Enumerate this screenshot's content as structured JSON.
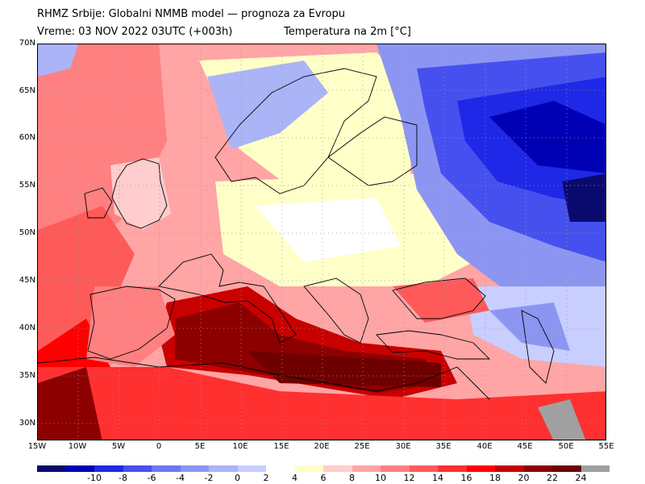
{
  "header": {
    "line1": "RHMZ Srbije: Globalni NMMB model — prognoza za Evropu",
    "line2": "Vreme: 03 NOV 2022 03UTC (+003h)",
    "line2b": "Temperatura na 2m [°C]"
  },
  "axes": {
    "lat_labels": [
      "70N",
      "65N",
      "60N",
      "55N",
      "50N",
      "45N",
      "40N",
      "35N",
      "30N"
    ],
    "lon_labels": [
      "15W",
      "10W",
      "5W",
      "0",
      "5E",
      "10E",
      "15E",
      "20E",
      "25E",
      "30E",
      "35E",
      "40E",
      "45E",
      "50E",
      "55E"
    ]
  },
  "legend": {
    "labels": [
      "-10",
      "-8",
      "-6",
      "-4",
      "-2",
      "0",
      "2",
      "4",
      "6",
      "8",
      "10",
      "12",
      "14",
      "16",
      "18",
      "20",
      "22",
      "24"
    ],
    "colors": [
      "#0a0a6e",
      "#0000b4",
      "#1e28e6",
      "#4650ee",
      "#6e78f0",
      "#8c96f2",
      "#aab4f6",
      "#c8ceff",
      "#ffffff",
      "#ffffc8",
      "#ffcdcd",
      "#ffa5a5",
      "#ff8080",
      "#ff5a5a",
      "#ff3030",
      "#ff0000",
      "#c80000",
      "#8c0000",
      "#6e0000",
      "#a0a0a0"
    ]
  },
  "palette": {
    "sea_warm": "#ff8080",
    "med_hot": "#8c0000",
    "cold_deep": "#0000b4",
    "grid": "#9a9a9a",
    "border": "#000000"
  }
}
